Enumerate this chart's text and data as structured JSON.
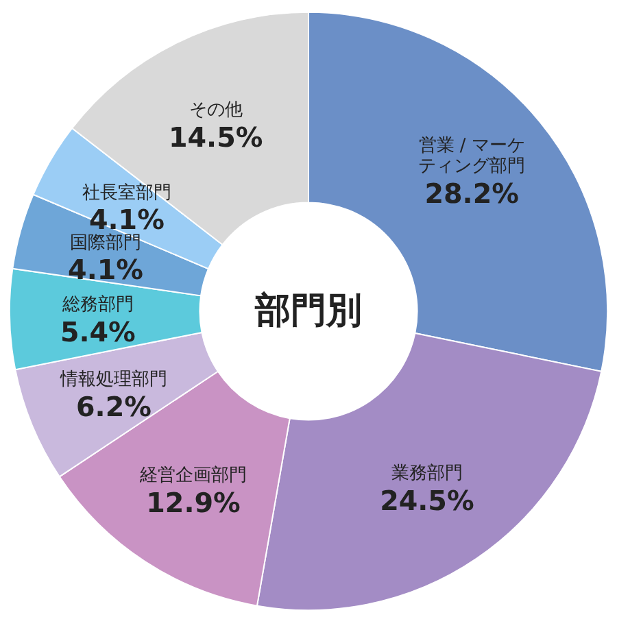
{
  "chart_data": {
    "type": "donut",
    "title": "部門別",
    "categories": [
      "営業 / マーケティング部門",
      "業務部門",
      "経営企画部門",
      "情報処理部門",
      "総務部門",
      "国際部門",
      "社長室部門",
      "その他"
    ],
    "values": [
      28.2,
      24.5,
      12.9,
      6.2,
      5.4,
      4.1,
      4.1,
      14.5
    ],
    "value_labels": [
      "28.2%",
      "24.5%",
      "12.9%",
      "6.2%",
      "5.4%",
      "4.1%",
      "4.1%",
      "14.5%"
    ],
    "colors": [
      "#6b8fc7",
      "#a38cc5",
      "#c993c4",
      "#c9b9dd",
      "#5ccadc",
      "#6ea6d8",
      "#9bcdf5",
      "#d9d9d9"
    ],
    "legend": false
  }
}
